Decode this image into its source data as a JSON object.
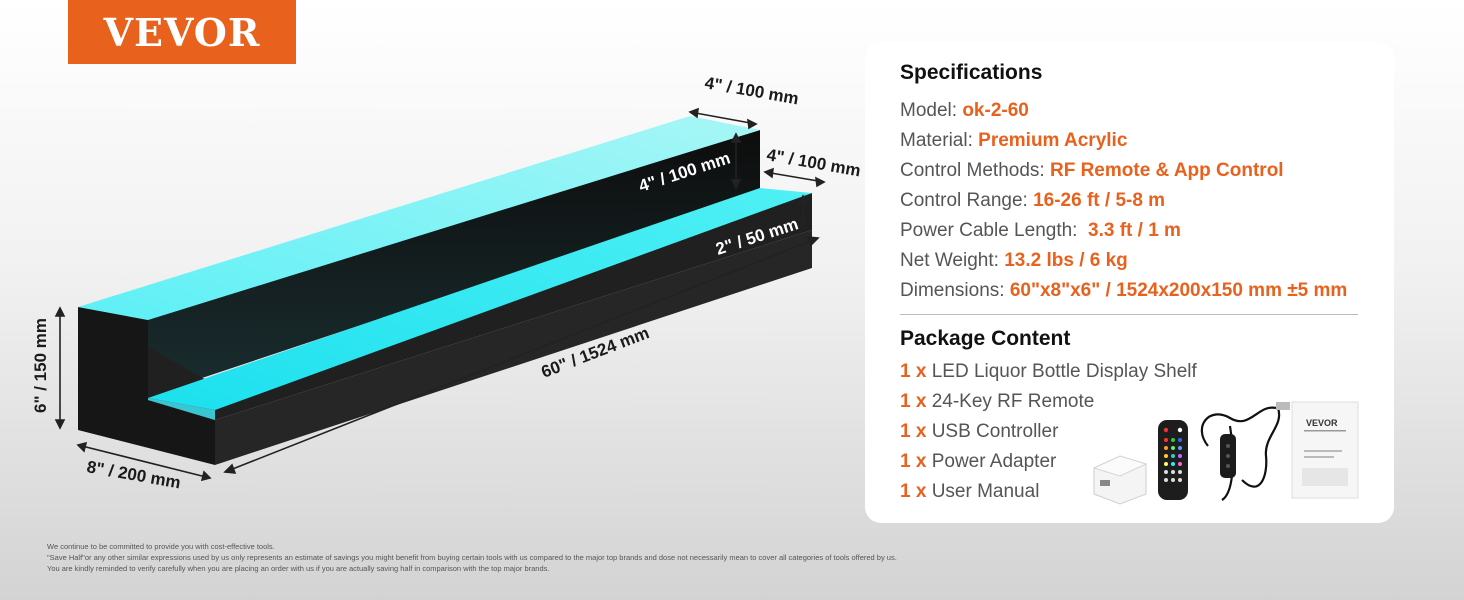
{
  "brand": "VEVOR",
  "dimensions": {
    "top_depth": "4\" / 100 mm",
    "inner_height": "4\" / 100 mm",
    "step_depth": "4\" / 100 mm",
    "step_height": "2\" / 50 mm",
    "length": "60\" / 1524 mm",
    "height": "6\" / 150 mm",
    "depth": "8\" / 200 mm"
  },
  "specifications": {
    "title": "Specifications",
    "rows": [
      {
        "label": "Model: ",
        "value": "ok-2-60"
      },
      {
        "label": "Material: ",
        "value": "Premium Acrylic"
      },
      {
        "label": "Control Methods: ",
        "value": "RF Remote & App Control"
      },
      {
        "label": "Control Range: ",
        "value": "16-26 ft / 5-8 m"
      },
      {
        "label": "Power Cable Length:  ",
        "value": "3.3 ft / 1 m"
      },
      {
        "label": "Net Weight: ",
        "value": "13.2 lbs / 6 kg"
      },
      {
        "label": "Dimensions: ",
        "value": "60\"x8\"x6\" / 1524x200x150 mm ±5 mm"
      }
    ]
  },
  "package": {
    "title": "Package Content",
    "items": [
      {
        "qty": "1 x",
        "name": "LED Liquor Bottle Display Shelf"
      },
      {
        "qty": "1 x",
        "name": "24-Key RF Remote"
      },
      {
        "qty": "1 x",
        "name": "USB Controller"
      },
      {
        "qty": "1 x",
        "name": "Power Adapter"
      },
      {
        "qty": "1 x",
        "name": "User Manual"
      }
    ]
  },
  "manual_brand": "VEVOR",
  "disclaimer": [
    "We continue to be committed to provide you with cost-effective tools.",
    "\"Save Half\"or any other similar expressions used by us only represents an estimate of savings you might benefit from buying certain tools with us compared to the major top brands and dose not necessarily mean to cover all categories of tools offered by us.",
    "You are kindly reminded to verify carefully when you are placing an order with us if you are actually saving half in comparison with the top major brands."
  ],
  "colors": {
    "accent": "#e8611d",
    "glow": "#48e3f0",
    "shelf": "#1c1c1c"
  }
}
